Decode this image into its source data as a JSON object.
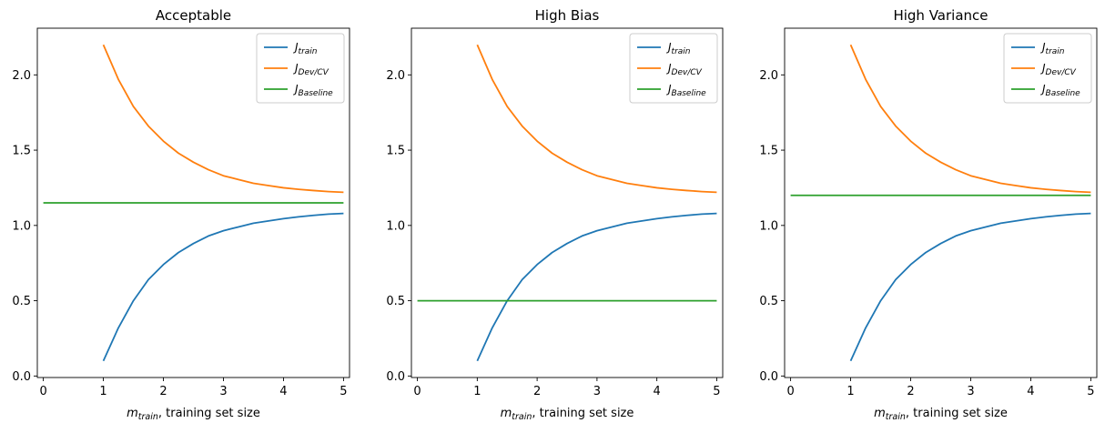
{
  "chart_data": [
    {
      "type": "line",
      "title": "Acceptable",
      "xlabel": {
        "var": "m",
        "sub": "train",
        "rest": ", training set size"
      },
      "xlim": [
        -0.1,
        5.1
      ],
      "ylim": [
        -0.01,
        2.31
      ],
      "xticks": [
        0,
        1,
        2,
        3,
        4,
        5
      ],
      "yticks": [
        0.0,
        0.5,
        1.0,
        1.5,
        2.0
      ],
      "legend_position": "top-right",
      "series": [
        {
          "name": "J_train",
          "label_main": "J",
          "label_sub": "train",
          "color": "#1f77b4",
          "x": [
            1.0,
            1.25,
            1.5,
            1.75,
            2.0,
            2.25,
            2.5,
            2.75,
            3.0,
            3.25,
            3.5,
            3.75,
            4.0,
            4.25,
            4.5,
            4.75,
            5.0
          ],
          "y": [
            0.1,
            0.32,
            0.5,
            0.64,
            0.74,
            0.82,
            0.88,
            0.93,
            0.965,
            0.99,
            1.015,
            1.03,
            1.045,
            1.057,
            1.067,
            1.075,
            1.08
          ]
        },
        {
          "name": "J_Dev/CV",
          "label_main": "J",
          "label_sub": "Dev/CV",
          "color": "#ff7f0e",
          "x": [
            1.0,
            1.25,
            1.5,
            1.75,
            2.0,
            2.25,
            2.5,
            2.75,
            3.0,
            3.25,
            3.5,
            3.75,
            4.0,
            4.25,
            4.5,
            4.75,
            5.0
          ],
          "y": [
            2.2,
            1.97,
            1.79,
            1.66,
            1.56,
            1.48,
            1.42,
            1.37,
            1.33,
            1.305,
            1.28,
            1.265,
            1.25,
            1.24,
            1.232,
            1.225,
            1.22
          ]
        },
        {
          "name": "J_Baseline",
          "label_main": "J",
          "label_sub": "Baseline",
          "color": "#2ca02c",
          "x": [
            0,
            5
          ],
          "y": [
            1.15,
            1.15
          ]
        }
      ]
    },
    {
      "type": "line",
      "title": "High Bias",
      "xlabel": {
        "var": "m",
        "sub": "train",
        "rest": ", training set size"
      },
      "xlim": [
        -0.1,
        5.1
      ],
      "ylim": [
        -0.01,
        2.31
      ],
      "xticks": [
        0,
        1,
        2,
        3,
        4,
        5
      ],
      "yticks": [
        0.0,
        0.5,
        1.0,
        1.5,
        2.0
      ],
      "legend_position": "top-right",
      "series": [
        {
          "name": "J_train",
          "label_main": "J",
          "label_sub": "train",
          "color": "#1f77b4",
          "x": [
            1.0,
            1.25,
            1.5,
            1.75,
            2.0,
            2.25,
            2.5,
            2.75,
            3.0,
            3.25,
            3.5,
            3.75,
            4.0,
            4.25,
            4.5,
            4.75,
            5.0
          ],
          "y": [
            0.1,
            0.32,
            0.5,
            0.64,
            0.74,
            0.82,
            0.88,
            0.93,
            0.965,
            0.99,
            1.015,
            1.03,
            1.045,
            1.057,
            1.067,
            1.075,
            1.08
          ]
        },
        {
          "name": "J_Dev/CV",
          "label_main": "J",
          "label_sub": "Dev/CV",
          "color": "#ff7f0e",
          "x": [
            1.0,
            1.25,
            1.5,
            1.75,
            2.0,
            2.25,
            2.5,
            2.75,
            3.0,
            3.25,
            3.5,
            3.75,
            4.0,
            4.25,
            4.5,
            4.75,
            5.0
          ],
          "y": [
            2.2,
            1.97,
            1.79,
            1.66,
            1.56,
            1.48,
            1.42,
            1.37,
            1.33,
            1.305,
            1.28,
            1.265,
            1.25,
            1.24,
            1.232,
            1.225,
            1.22
          ]
        },
        {
          "name": "J_Baseline",
          "label_main": "J",
          "label_sub": "Baseline",
          "color": "#2ca02c",
          "x": [
            0,
            5
          ],
          "y": [
            0.5,
            0.5
          ]
        }
      ]
    },
    {
      "type": "line",
      "title": "High Variance",
      "xlabel": {
        "var": "m",
        "sub": "train",
        "rest": ", training set size"
      },
      "xlim": [
        -0.1,
        5.1
      ],
      "ylim": [
        -0.01,
        2.31
      ],
      "xticks": [
        0,
        1,
        2,
        3,
        4,
        5
      ],
      "yticks": [
        0.0,
        0.5,
        1.0,
        1.5,
        2.0
      ],
      "legend_position": "top-right",
      "series": [
        {
          "name": "J_train",
          "label_main": "J",
          "label_sub": "train",
          "color": "#1f77b4",
          "x": [
            1.0,
            1.25,
            1.5,
            1.75,
            2.0,
            2.25,
            2.5,
            2.75,
            3.0,
            3.25,
            3.5,
            3.75,
            4.0,
            4.25,
            4.5,
            4.75,
            5.0
          ],
          "y": [
            0.1,
            0.32,
            0.5,
            0.64,
            0.74,
            0.82,
            0.88,
            0.93,
            0.965,
            0.99,
            1.015,
            1.03,
            1.045,
            1.057,
            1.067,
            1.075,
            1.08
          ]
        },
        {
          "name": "J_Dev/CV",
          "label_main": "J",
          "label_sub": "Dev/CV",
          "color": "#ff7f0e",
          "x": [
            1.0,
            1.25,
            1.5,
            1.75,
            2.0,
            2.25,
            2.5,
            2.75,
            3.0,
            3.25,
            3.5,
            3.75,
            4.0,
            4.25,
            4.5,
            4.75,
            5.0
          ],
          "y": [
            2.2,
            1.97,
            1.79,
            1.66,
            1.56,
            1.48,
            1.42,
            1.37,
            1.33,
            1.305,
            1.28,
            1.265,
            1.25,
            1.24,
            1.232,
            1.225,
            1.22
          ]
        },
        {
          "name": "J_Baseline",
          "label_main": "J",
          "label_sub": "Baseline",
          "color": "#2ca02c",
          "x": [
            0,
            5
          ],
          "y": [
            1.2,
            1.2
          ]
        }
      ]
    }
  ]
}
